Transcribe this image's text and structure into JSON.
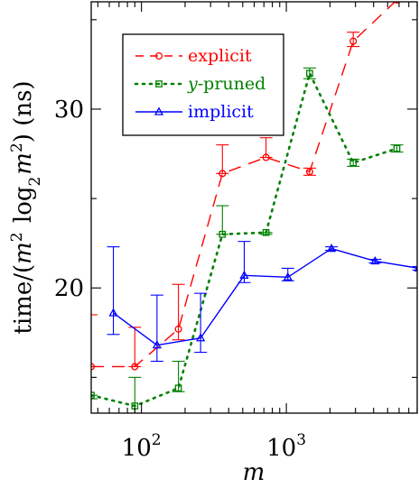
{
  "chart_data": {
    "type": "line",
    "title": "",
    "xlabel": "m",
    "ylabel": "time/(m² log₂ m²) (ns)",
    "xscale": "log",
    "xlim": [
      45,
      8000
    ],
    "ylim": [
      13,
      36
    ],
    "grid": false,
    "legend_position": "top-left",
    "x_ticks": [
      {
        "value": 100,
        "base": "10",
        "exp": "2"
      },
      {
        "value": 1000,
        "base": "10",
        "exp": "3"
      }
    ],
    "y_ticks": [
      {
        "value": 20,
        "label": "20"
      },
      {
        "value": 30,
        "label": "30"
      }
    ],
    "series": [
      {
        "name": "explicit",
        "color": "#ff0000",
        "line_style": "dashed",
        "marker": "circle",
        "x": [
          45,
          90,
          180,
          362,
          724,
          1448,
          2896,
          5792
        ],
        "y": [
          15.6,
          15.6,
          17.7,
          26.4,
          27.3,
          26.5,
          33.8,
          36.1
        ],
        "err_low": [
          15.6,
          15.6,
          17.1,
          26.4,
          27.3,
          26.3,
          33.5,
          36.0
        ],
        "err_high": [
          18.5,
          17.8,
          20.2,
          28.0,
          28.4,
          26.7,
          34.3,
          36.3
        ]
      },
      {
        "name": "y-pruned",
        "name_parts": [
          "y",
          "-pruned"
        ],
        "color": "#008000",
        "line_style": "dotted",
        "marker": "square",
        "x": [
          45,
          90,
          180,
          362,
          724,
          1448,
          2896,
          5792
        ],
        "y": [
          14.0,
          13.4,
          14.4,
          23.0,
          23.1,
          32.0,
          27.0,
          27.8
        ],
        "err_low": [
          13.8,
          13.0,
          14.2,
          23.0,
          23.0,
          31.7,
          26.8,
          27.6
        ],
        "err_high": [
          14.0,
          15.0,
          15.9,
          24.6,
          23.1,
          32.3,
          27.2,
          28.0
        ]
      },
      {
        "name": "implicit",
        "color": "#0000ff",
        "line_style": "solid",
        "marker": "triangle",
        "x": [
          64,
          128,
          256,
          512,
          1024,
          2048,
          4096,
          8192
        ],
        "y": [
          18.6,
          16.8,
          17.2,
          20.7,
          20.6,
          22.2,
          21.5,
          21.1
        ],
        "err_low": [
          17.4,
          15.9,
          16.4,
          20.3,
          20.4,
          22.1,
          21.4,
          21.0
        ],
        "err_high": [
          22.3,
          19.6,
          19.7,
          22.6,
          21.1,
          22.3,
          21.6,
          21.2
        ]
      }
    ]
  }
}
